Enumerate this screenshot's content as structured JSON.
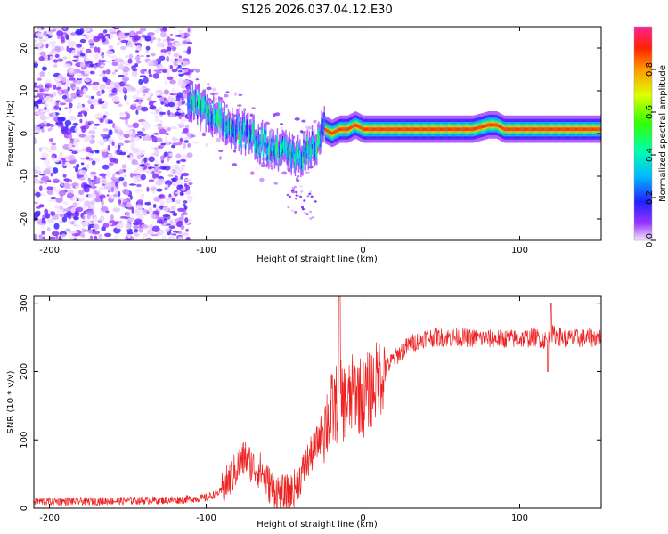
{
  "title": "S126.2026.037.04.12.E30",
  "chart_data": [
    {
      "type": "heatmap",
      "title": "S126.2026.037.04.12.E30",
      "xlabel": "Height of straight line (km)",
      "ylabel": "Frequency (Hz)",
      "xlim": [
        -210,
        152
      ],
      "ylim": [
        -25,
        25
      ],
      "xticks": [
        -200,
        -100,
        0,
        100
      ],
      "yticks": [
        -20,
        -10,
        0,
        10,
        20
      ],
      "colorbar": {
        "label": "Normalized spectral amplitude",
        "range": [
          0,
          1
        ],
        "ticks": [
          0.0,
          0.2,
          0.4,
          0.6,
          0.8
        ]
      },
      "ridge": {
        "x": [
          -110,
          -100,
          -90,
          -80,
          -70,
          -60,
          -50,
          -40,
          -35,
          -30,
          -25,
          -20,
          -15,
          -10,
          -5,
          0,
          10,
          40,
          70,
          80,
          85,
          90,
          100,
          110,
          120,
          130,
          152
        ],
        "freq": [
          7,
          5,
          3,
          1,
          -1,
          -3,
          -4,
          -6,
          -4,
          -2,
          1,
          0,
          1,
          1,
          2,
          1,
          1,
          1,
          1,
          2,
          2,
          1,
          1,
          1,
          1,
          1,
          1
        ]
      }
    },
    {
      "type": "line",
      "xlabel": "Height of straight line (km)",
      "ylabel": "SNR (10 * v/v)",
      "xlim": [
        -210,
        152
      ],
      "ylim": [
        0,
        310
      ],
      "xticks": [
        -200,
        -100,
        0,
        100
      ],
      "yticks": [
        0,
        100,
        200,
        300
      ],
      "series": [
        {
          "name": "SNR",
          "color": "#ee2222",
          "x": [
            -210,
            -180,
            -150,
            -120,
            -100,
            -90,
            -80,
            -75,
            -70,
            -65,
            -60,
            -55,
            -50,
            -45,
            -40,
            -35,
            -30,
            -25,
            -20,
            -15,
            -10,
            -5,
            0,
            10,
            20,
            30,
            40,
            60,
            80,
            100,
            110,
            118,
            120,
            130,
            152
          ],
          "y": [
            10,
            10,
            11,
            12,
            15,
            25,
            60,
            75,
            60,
            55,
            35,
            25,
            20,
            25,
            45,
            70,
            90,
            120,
            140,
            160,
            150,
            175,
            160,
            190,
            220,
            240,
            250,
            250,
            248,
            248,
            250,
            245,
            255,
            248,
            250
          ]
        }
      ]
    }
  ]
}
